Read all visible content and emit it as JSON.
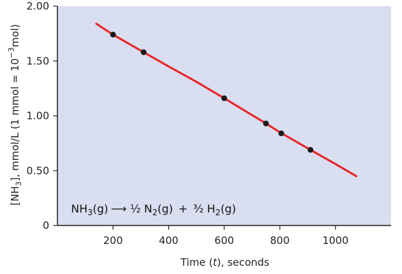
{
  "chart_data": {
    "type": "line",
    "xlabel_parts": [
      "Time (",
      "t",
      "), seconds"
    ],
    "ylabel_parts": {
      "open": "[NH",
      "sub3": "3",
      "mid": "], mmol/L (1 mmol = 10",
      "sup": "−3",
      "close": "mol)"
    },
    "xlim": [
      0,
      1200
    ],
    "ylim": [
      0,
      2.0
    ],
    "x_ticks": [
      200,
      400,
      600,
      800,
      1000
    ],
    "x_tick_labels": [
      "200",
      "400",
      "600",
      "800",
      "1000"
    ],
    "y_ticks": [
      0,
      0.5,
      1.0,
      1.5,
      2.0
    ],
    "y_tick_labels": [
      "0",
      "0.50",
      "1.00",
      "1.50",
      "2.00"
    ],
    "series": [
      {
        "line": [
          [
            140,
            1.84
          ],
          [
            200,
            1.74
          ],
          [
            310,
            1.58
          ],
          [
            400,
            1.45
          ],
          [
            500,
            1.31
          ],
          [
            600,
            1.16
          ],
          [
            750,
            0.93
          ],
          [
            800,
            0.85
          ],
          [
            910,
            0.69
          ],
          [
            1000,
            0.56
          ],
          [
            1075,
            0.45
          ]
        ],
        "points": [
          [
            200,
            1.74
          ],
          [
            310,
            1.58
          ],
          [
            600,
            1.16
          ],
          [
            750,
            0.93
          ],
          [
            805,
            0.84
          ],
          [
            910,
            0.69
          ]
        ]
      }
    ],
    "equation": {
      "nh": "NH",
      "nh_sub": "3",
      "nh_state": "(g)",
      "arrow": "⟶",
      "half": "½",
      "n2": "N",
      "n2_sub": "2",
      "n2_state": "(g)",
      "plus": "+",
      "three_half": "³⁄₂",
      "h2": "H",
      "h2_sub": "2",
      "h2_state": "(g)"
    },
    "colors": {
      "plot_background": "#d9dff0",
      "line": "#e8262b",
      "point": "#1a1a1a",
      "axis": "#222222"
    }
  }
}
